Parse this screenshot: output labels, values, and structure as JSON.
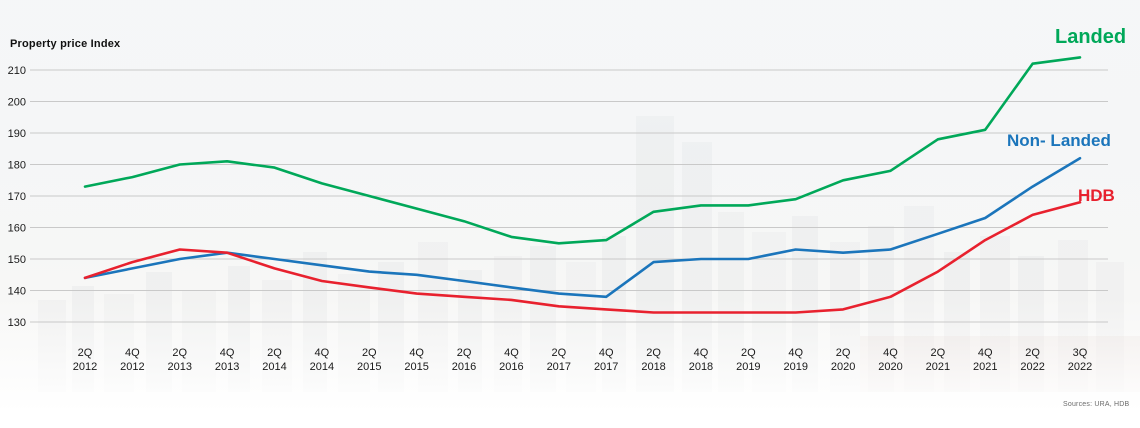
{
  "header": {
    "title": "Property price Index"
  },
  "footer": {
    "sources": "Sources: URA, HDB"
  },
  "series_labels": {
    "landed": "Landed",
    "non_landed": "Non- Landed",
    "hdb": "HDB"
  },
  "colors": {
    "landed": "#00a859",
    "non_landed": "#1b75bb",
    "hdb": "#e8212e",
    "gridline": "#c9c9c9",
    "axis_text": "#1a1a1a"
  },
  "chart_data": {
    "type": "line",
    "title": "Property price Index",
    "xlabel": "",
    "ylabel": "Property price Index",
    "ylim": [
      130,
      215
    ],
    "yticks": [
      130,
      140,
      150,
      160,
      170,
      180,
      190,
      200,
      210
    ],
    "grid": true,
    "legend_position": "line-end-labels",
    "x_tick_labels": [
      {
        "q": "2Q",
        "year": "2012"
      },
      {
        "q": "4Q",
        "year": "2012"
      },
      {
        "q": "2Q",
        "year": "2013"
      },
      {
        "q": "4Q",
        "year": "2013"
      },
      {
        "q": "2Q",
        "year": "2014"
      },
      {
        "q": "4Q",
        "year": "2014"
      },
      {
        "q": "2Q",
        "year": "2015"
      },
      {
        "q": "4Q",
        "year": "2015"
      },
      {
        "q": "2Q",
        "year": "2016"
      },
      {
        "q": "4Q",
        "year": "2016"
      },
      {
        "q": "2Q",
        "year": "2017"
      },
      {
        "q": "4Q",
        "year": "2017"
      },
      {
        "q": "2Q",
        "year": "2018"
      },
      {
        "q": "4Q",
        "year": "2018"
      },
      {
        "q": "2Q",
        "year": "2019"
      },
      {
        "q": "4Q",
        "year": "2019"
      },
      {
        "q": "2Q",
        "year": "2020"
      },
      {
        "q": "4Q",
        "year": "2020"
      },
      {
        "q": "2Q",
        "year": "2021"
      },
      {
        "q": "4Q",
        "year": "2021"
      },
      {
        "q": "2Q",
        "year": "2022"
      },
      {
        "q": "3Q",
        "year": "2022"
      }
    ],
    "series": [
      {
        "name": "Landed",
        "color": "#00a859",
        "values": [
          173,
          176,
          180,
          181,
          179,
          174,
          170,
          166,
          162,
          157,
          155,
          156,
          165,
          167,
          167,
          169,
          175,
          178,
          188,
          191,
          212,
          214
        ]
      },
      {
        "name": "Non-Landed",
        "color": "#1b75bb",
        "values": [
          144,
          147,
          150,
          152,
          150,
          148,
          146,
          145,
          143,
          141,
          139,
          138,
          149,
          150,
          150,
          153,
          152,
          153,
          158,
          163,
          173,
          182
        ]
      },
      {
        "name": "HDB",
        "color": "#e8212e",
        "values": [
          144,
          149,
          153,
          152,
          147,
          143,
          141,
          139,
          138,
          137,
          135,
          134,
          133,
          133,
          133,
          133,
          134,
          138,
          146,
          156,
          164,
          168
        ]
      }
    ],
    "sources": "Sources: URA, HDB"
  }
}
